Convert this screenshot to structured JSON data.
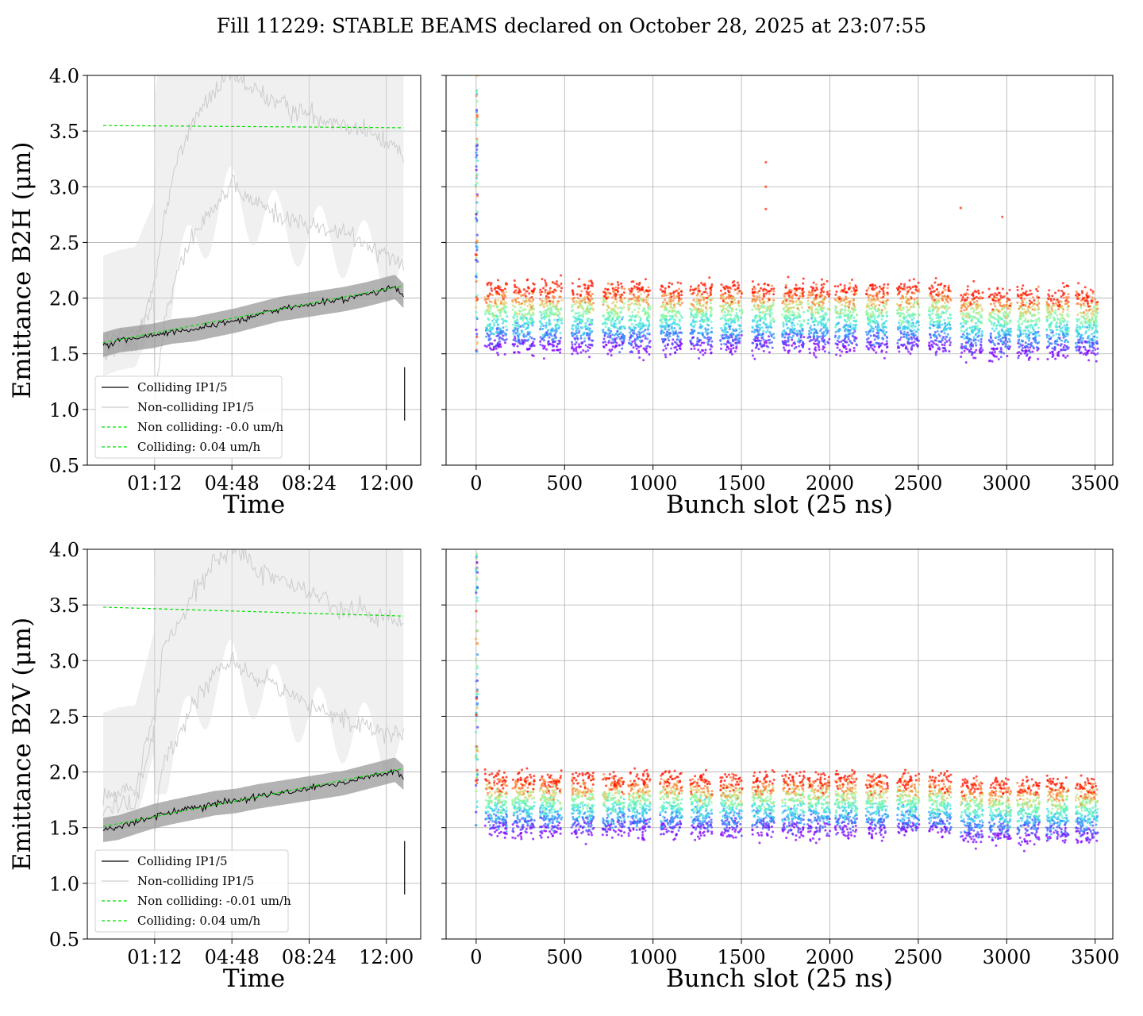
{
  "figure": {
    "title": "Fill 11229: STABLE BEAMS declared on October 28, 2025 at 23:07:55"
  },
  "chart_data": [
    {
      "panel": "top-left",
      "type": "line",
      "xlabel": "Time",
      "ylabel": "Emittance B2H (μm)",
      "ylim": [
        0.5,
        4.0
      ],
      "yticks": [
        "0.5",
        "1.0",
        "1.5",
        "2.0",
        "2.5",
        "3.0",
        "3.5",
        "4.0"
      ],
      "xticks": [
        "01:12",
        "04:48",
        "08:24",
        "12:00"
      ],
      "xtick_hours": [
        1.2,
        4.8,
        8.4,
        12.0
      ],
      "xlim_hours": [
        -1.94,
        13.6
      ],
      "grid": true,
      "legend_position": "lower-left",
      "legend": [
        "Colliding IP1/5",
        "Non-colliding IP1/5",
        "Non colliding: -0.0 um/h",
        "Colliding: 0.04 um/h"
      ],
      "colors": {
        "colliding": "#000000",
        "non_colliding": "#cccccc",
        "band": "#dddddd",
        "colliding_band": "#999999",
        "fit": "#00dd00"
      },
      "series": [
        {
          "name": "Colliding IP1/5",
          "x_hours": [
            -1.2,
            -0.5,
            0.3,
            1.1,
            2.0,
            3.0,
            4.0,
            5.0,
            6.0,
            7.0,
            8.0,
            9.0,
            10.0,
            11.0,
            12.0,
            12.4,
            12.8
          ],
          "values": [
            1.58,
            1.62,
            1.64,
            1.66,
            1.7,
            1.72,
            1.76,
            1.8,
            1.85,
            1.9,
            1.93,
            1.96,
            1.99,
            2.03,
            2.08,
            2.1,
            2.02
          ]
        },
        {
          "name": "Non-colliding IP1/5",
          "x_hours": [
            -1.2,
            -0.5,
            0.3,
            1.2,
            1.6,
            2.2,
            3.0,
            4.0,
            4.8,
            5.5,
            6.5,
            7.5,
            8.5,
            9.5,
            10.5,
            11.5,
            12.5,
            12.8
          ],
          "values": [
            1.6,
            1.65,
            1.68,
            2.1,
            2.7,
            3.2,
            3.6,
            3.85,
            4.0,
            3.9,
            3.8,
            3.7,
            3.65,
            3.6,
            3.55,
            3.45,
            3.35,
            3.3
          ]
        },
        {
          "name": "Non colliding: -0.0 um/h",
          "x_hours": [
            -1.2,
            12.8
          ],
          "values": [
            3.55,
            3.53
          ]
        },
        {
          "name": "Colliding: 0.04 um/h",
          "x_hours": [
            -1.2,
            12.8
          ],
          "values": [
            1.6,
            2.11
          ]
        }
      ]
    },
    {
      "panel": "top-right",
      "type": "scatter",
      "xlabel": "Bunch slot (25 ns)",
      "ylim": [
        0.5,
        4.0
      ],
      "xlim": [
        -170,
        3600
      ],
      "xticks": [
        "0",
        "500",
        "1000",
        "1500",
        "2000",
        "2500",
        "3000",
        "3500"
      ],
      "grid": true,
      "colormap": "rainbow (time: purple early → red late)",
      "train_starts": [
        50,
        205,
        360,
        540,
        715,
        860,
        1040,
        1210,
        1380,
        1560,
        1730,
        1875,
        2030,
        2205,
        2380,
        2560,
        2740,
        2900,
        3060,
        3225,
        3390
      ],
      "train_length": 125,
      "values_start_mean": 1.57,
      "values_end_mean": 2.08,
      "outliers": [
        {
          "x": 1638,
          "y": 3.22
        },
        {
          "x": 1638,
          "y": 3.0
        },
        {
          "x": 1638,
          "y": 2.8
        },
        {
          "x": 2740,
          "y": 2.81
        },
        {
          "x": 2975,
          "y": 2.73
        }
      ]
    },
    {
      "panel": "bottom-left",
      "type": "line",
      "xlabel": "Time",
      "ylabel": "Emittance B2V (μm)",
      "ylim": [
        0.5,
        4.0
      ],
      "yticks": [
        "0.5",
        "1.0",
        "1.5",
        "2.0",
        "2.5",
        "3.0",
        "3.5",
        "4.0"
      ],
      "xticks": [
        "01:12",
        "04:48",
        "08:24",
        "12:00"
      ],
      "xtick_hours": [
        1.2,
        4.8,
        8.4,
        12.0
      ],
      "xlim_hours": [
        -1.94,
        13.6
      ],
      "grid": true,
      "legend_position": "lower-left",
      "legend": [
        "Colliding IP1/5",
        "Non-colliding IP1/5",
        "Non colliding: -0.01 um/h",
        "Colliding: 0.04 um/h"
      ],
      "colors": {
        "colliding": "#000000",
        "non_colliding": "#cccccc",
        "band": "#dddddd",
        "colliding_band": "#999999",
        "fit": "#00dd00"
      },
      "series": [
        {
          "name": "Colliding IP1/5",
          "x_hours": [
            -1.2,
            -0.5,
            0.3,
            1.1,
            2.0,
            3.0,
            4.0,
            5.0,
            6.0,
            7.0,
            8.0,
            9.0,
            10.0,
            11.0,
            12.0,
            12.4,
            12.8
          ],
          "values": [
            1.48,
            1.5,
            1.55,
            1.6,
            1.64,
            1.68,
            1.72,
            1.74,
            1.78,
            1.81,
            1.84,
            1.87,
            1.9,
            1.95,
            2.0,
            2.02,
            1.95
          ]
        },
        {
          "name": "Non-colliding IP1/5",
          "x_hours": [
            -1.2,
            -0.5,
            0.3,
            1.2,
            1.6,
            2.2,
            3.0,
            4.0,
            4.8,
            5.5,
            6.5,
            7.5,
            8.5,
            9.5,
            10.5,
            11.5,
            12.5,
            12.8
          ],
          "values": [
            1.75,
            1.8,
            1.82,
            2.5,
            3.1,
            3.3,
            3.6,
            3.9,
            4.0,
            3.9,
            3.8,
            3.7,
            3.6,
            3.5,
            3.45,
            3.4,
            3.35,
            3.3
          ]
        },
        {
          "name": "Non colliding: -0.01 um/h",
          "x_hours": [
            -1.2,
            12.8
          ],
          "values": [
            3.48,
            3.4
          ]
        },
        {
          "name": "Colliding: 0.04 um/h",
          "x_hours": [
            -1.2,
            12.8
          ],
          "values": [
            1.51,
            2.03
          ]
        }
      ]
    },
    {
      "panel": "bottom-right",
      "type": "scatter",
      "xlabel": "Bunch slot (25 ns)",
      "ylim": [
        0.5,
        4.0
      ],
      "xlim": [
        -170,
        3600
      ],
      "xticks": [
        "0",
        "500",
        "1000",
        "1500",
        "2000",
        "2500",
        "3000",
        "3500"
      ],
      "grid": true,
      "colormap": "rainbow (time: purple early → red late)",
      "train_starts": [
        50,
        205,
        360,
        540,
        715,
        860,
        1040,
        1210,
        1380,
        1560,
        1730,
        1875,
        2030,
        2205,
        2380,
        2560,
        2740,
        2900,
        3060,
        3225,
        3390
      ],
      "train_length": 125,
      "values_start_mean": 1.48,
      "values_end_mean": 1.93,
      "outliers": []
    }
  ]
}
